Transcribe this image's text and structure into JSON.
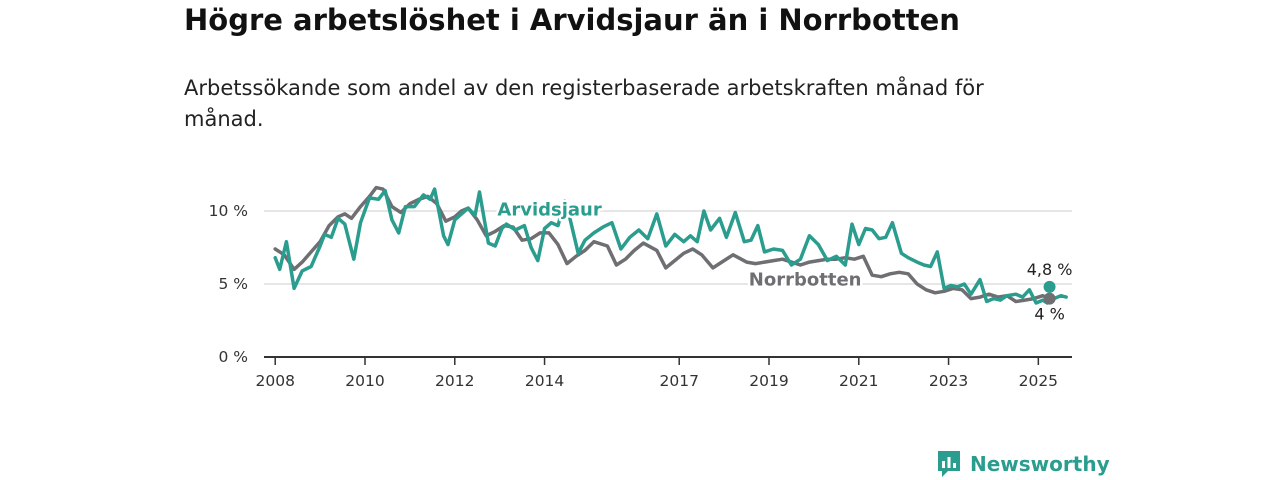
{
  "title": "Högre arbetslöshet i Arvidsjaur än i Norrbotten",
  "subtitle": "Arbetssökande som andel av den registerbaserade arbetskraften månad för månad.",
  "brand": {
    "name": "Newsworthy",
    "icon": "newsworthy-logo-icon",
    "color": "#2a9d8f"
  },
  "chart_data": {
    "type": "line",
    "title": "Högre arbetslöshet i Arvidsjaur än i Norrbotten",
    "subtitle": "Arbetssökande som andel av den registerbaserade arbetskraften månad för månad.",
    "xlabel": "",
    "ylabel": "",
    "x_range": [
      2007.75,
      2025.75
    ],
    "ylim": [
      0,
      12
    ],
    "y_ticks": [
      0,
      5,
      10
    ],
    "y_tick_labels": [
      "0 %",
      "5 %",
      "10 %"
    ],
    "x_ticks": [
      2008,
      2010,
      2012,
      2014,
      2017,
      2019,
      2021,
      2023,
      2025
    ],
    "x_tick_labels": [
      "2008",
      "2010",
      "2012",
      "2014",
      "2017",
      "2019",
      "2021",
      "2023",
      "2025"
    ],
    "grid": true,
    "series": [
      {
        "name": "Norrbotten",
        "color": "#6e6e73",
        "end_label": "4 %",
        "points": [
          [
            2008.0,
            7.4
          ],
          [
            2008.2,
            7.0
          ],
          [
            2008.42,
            6.0
          ],
          [
            2008.6,
            6.5
          ],
          [
            2008.8,
            7.2
          ],
          [
            2009.0,
            7.9
          ],
          [
            2009.2,
            9.0
          ],
          [
            2009.4,
            9.6
          ],
          [
            2009.55,
            9.8
          ],
          [
            2009.7,
            9.5
          ],
          [
            2009.9,
            10.3
          ],
          [
            2010.1,
            11.0
          ],
          [
            2010.25,
            11.6
          ],
          [
            2010.4,
            11.5
          ],
          [
            2010.6,
            10.3
          ],
          [
            2010.8,
            9.9
          ],
          [
            2011.0,
            10.5
          ],
          [
            2011.2,
            10.8
          ],
          [
            2011.4,
            11.0
          ],
          [
            2011.6,
            10.5
          ],
          [
            2011.8,
            9.3
          ],
          [
            2012.0,
            9.6
          ],
          [
            2012.15,
            10.0
          ],
          [
            2012.3,
            10.2
          ],
          [
            2012.5,
            9.4
          ],
          [
            2012.7,
            8.3
          ],
          [
            2012.9,
            8.6
          ],
          [
            2013.1,
            9.0
          ],
          [
            2013.3,
            8.9
          ],
          [
            2013.5,
            8.0
          ],
          [
            2013.7,
            8.1
          ],
          [
            2013.9,
            8.5
          ],
          [
            2014.1,
            8.5
          ],
          [
            2014.3,
            7.7
          ],
          [
            2014.5,
            6.4
          ],
          [
            2014.7,
            6.9
          ],
          [
            2014.9,
            7.3
          ],
          [
            2015.1,
            7.9
          ],
          [
            2015.4,
            7.6
          ],
          [
            2015.6,
            6.3
          ],
          [
            2015.8,
            6.7
          ],
          [
            2016.0,
            7.3
          ],
          [
            2016.2,
            7.8
          ],
          [
            2016.5,
            7.3
          ],
          [
            2016.7,
            6.1
          ],
          [
            2016.9,
            6.6
          ],
          [
            2017.1,
            7.1
          ],
          [
            2017.3,
            7.4
          ],
          [
            2017.5,
            7.0
          ],
          [
            2017.75,
            6.1
          ],
          [
            2018.0,
            6.6
          ],
          [
            2018.2,
            7.0
          ],
          [
            2018.5,
            6.5
          ],
          [
            2018.7,
            6.4
          ],
          [
            2018.9,
            6.5
          ],
          [
            2019.1,
            6.6
          ],
          [
            2019.3,
            6.7
          ],
          [
            2019.5,
            6.5
          ],
          [
            2019.7,
            6.3
          ],
          [
            2019.9,
            6.5
          ],
          [
            2020.1,
            6.6
          ],
          [
            2020.3,
            6.7
          ],
          [
            2020.5,
            6.7
          ],
          [
            2020.7,
            6.8
          ],
          [
            2020.9,
            6.7
          ],
          [
            2021.1,
            6.9
          ],
          [
            2021.3,
            5.6
          ],
          [
            2021.5,
            5.5
          ],
          [
            2021.7,
            5.7
          ],
          [
            2021.9,
            5.8
          ],
          [
            2022.1,
            5.7
          ],
          [
            2022.3,
            5.0
          ],
          [
            2022.5,
            4.6
          ],
          [
            2022.7,
            4.4
          ],
          [
            2022.9,
            4.5
          ],
          [
            2023.1,
            4.7
          ],
          [
            2023.3,
            4.6
          ],
          [
            2023.5,
            4.0
          ],
          [
            2023.7,
            4.1
          ],
          [
            2023.9,
            4.3
          ],
          [
            2024.1,
            4.1
          ],
          [
            2024.3,
            4.2
          ],
          [
            2024.5,
            3.8
          ],
          [
            2024.7,
            3.9
          ],
          [
            2024.9,
            4.0
          ],
          [
            2025.1,
            4.2
          ],
          [
            2025.25,
            4.0
          ]
        ]
      },
      {
        "name": "Arvidsjaur",
        "color": "#2a9d8f",
        "end_label": "4,8 %",
        "points": [
          [
            2008.0,
            6.8
          ],
          [
            2008.1,
            6.0
          ],
          [
            2008.25,
            7.9
          ],
          [
            2008.42,
            4.7
          ],
          [
            2008.6,
            5.9
          ],
          [
            2008.8,
            6.2
          ],
          [
            2009.0,
            7.6
          ],
          [
            2009.1,
            8.4
          ],
          [
            2009.25,
            8.2
          ],
          [
            2009.4,
            9.5
          ],
          [
            2009.55,
            9.1
          ],
          [
            2009.75,
            6.7
          ],
          [
            2009.9,
            9.2
          ],
          [
            2010.1,
            10.9
          ],
          [
            2010.3,
            10.8
          ],
          [
            2010.45,
            11.4
          ],
          [
            2010.6,
            9.4
          ],
          [
            2010.75,
            8.5
          ],
          [
            2010.9,
            10.3
          ],
          [
            2011.1,
            10.3
          ],
          [
            2011.3,
            11.1
          ],
          [
            2011.45,
            10.8
          ],
          [
            2011.55,
            11.5
          ],
          [
            2011.75,
            8.3
          ],
          [
            2011.85,
            7.7
          ],
          [
            2012.0,
            9.4
          ],
          [
            2012.15,
            9.8
          ],
          [
            2012.3,
            10.2
          ],
          [
            2012.45,
            9.7
          ],
          [
            2012.55,
            11.3
          ],
          [
            2012.75,
            7.8
          ],
          [
            2012.9,
            7.6
          ],
          [
            2013.05,
            8.8
          ],
          [
            2013.15,
            9.1
          ],
          [
            2013.35,
            8.7
          ],
          [
            2013.55,
            9.0
          ],
          [
            2013.7,
            7.5
          ],
          [
            2013.85,
            6.6
          ],
          [
            2014.0,
            8.8
          ],
          [
            2014.15,
            9.2
          ],
          [
            2014.3,
            9.0
          ],
          [
            2014.45,
            10.7
          ],
          [
            2014.55,
            9.7
          ],
          [
            2014.75,
            7.1
          ],
          [
            2014.9,
            8.0
          ],
          [
            2015.1,
            8.5
          ],
          [
            2015.3,
            8.9
          ],
          [
            2015.5,
            9.2
          ],
          [
            2015.7,
            7.4
          ],
          [
            2015.9,
            8.2
          ],
          [
            2016.1,
            8.7
          ],
          [
            2016.3,
            8.1
          ],
          [
            2016.5,
            9.8
          ],
          [
            2016.7,
            7.6
          ],
          [
            2016.9,
            8.4
          ],
          [
            2017.1,
            7.9
          ],
          [
            2017.25,
            8.3
          ],
          [
            2017.4,
            7.9
          ],
          [
            2017.55,
            10.0
          ],
          [
            2017.7,
            8.7
          ],
          [
            2017.9,
            9.5
          ],
          [
            2018.05,
            8.2
          ],
          [
            2018.25,
            9.9
          ],
          [
            2018.45,
            7.9
          ],
          [
            2018.6,
            8.0
          ],
          [
            2018.75,
            9.0
          ],
          [
            2018.9,
            7.2
          ],
          [
            2019.1,
            7.4
          ],
          [
            2019.3,
            7.3
          ],
          [
            2019.5,
            6.3
          ],
          [
            2019.7,
            6.7
          ],
          [
            2019.9,
            8.3
          ],
          [
            2020.1,
            7.7
          ],
          [
            2020.3,
            6.6
          ],
          [
            2020.5,
            6.9
          ],
          [
            2020.7,
            6.3
          ],
          [
            2020.85,
            9.1
          ],
          [
            2021.0,
            7.7
          ],
          [
            2021.15,
            8.8
          ],
          [
            2021.3,
            8.7
          ],
          [
            2021.45,
            8.1
          ],
          [
            2021.6,
            8.2
          ],
          [
            2021.75,
            9.2
          ],
          [
            2021.95,
            7.1
          ],
          [
            2022.1,
            6.8
          ],
          [
            2022.3,
            6.5
          ],
          [
            2022.45,
            6.3
          ],
          [
            2022.6,
            6.2
          ],
          [
            2022.75,
            7.2
          ],
          [
            2022.9,
            4.7
          ],
          [
            2023.05,
            4.9
          ],
          [
            2023.2,
            4.8
          ],
          [
            2023.35,
            5.0
          ],
          [
            2023.5,
            4.3
          ],
          [
            2023.7,
            5.3
          ],
          [
            2023.85,
            3.8
          ],
          [
            2024.0,
            4.0
          ],
          [
            2024.15,
            3.9
          ],
          [
            2024.3,
            4.2
          ],
          [
            2024.5,
            4.3
          ],
          [
            2024.65,
            4.1
          ],
          [
            2024.8,
            4.6
          ],
          [
            2024.95,
            3.7
          ],
          [
            2025.1,
            3.9
          ],
          [
            2025.2,
            3.7
          ],
          [
            2025.35,
            4.0
          ],
          [
            2025.5,
            4.2
          ],
          [
            2025.62,
            4.1
          ],
          [
            2025.25,
            4.8
          ]
        ]
      }
    ]
  }
}
